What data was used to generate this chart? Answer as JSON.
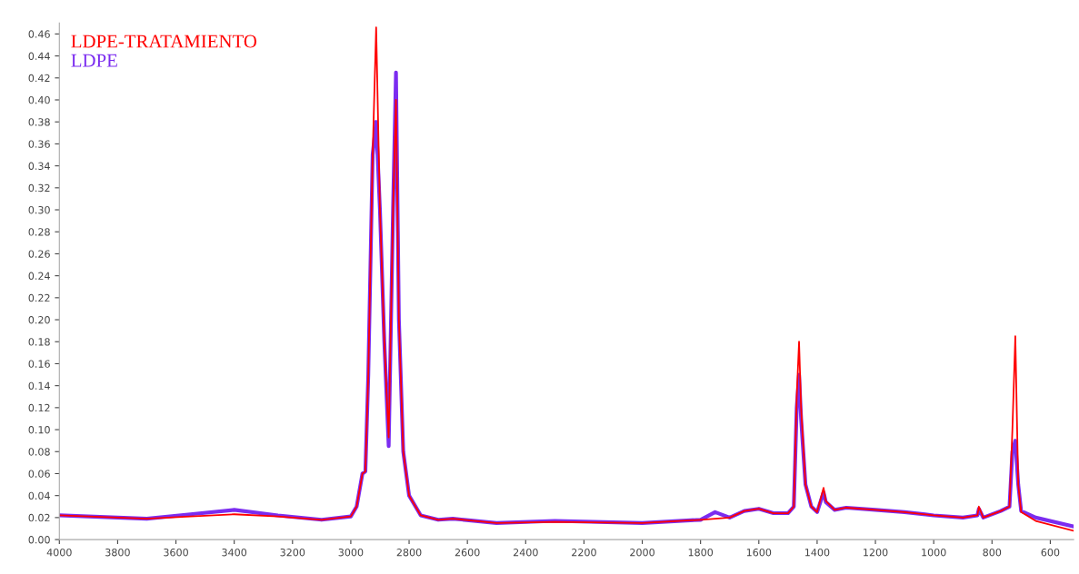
{
  "chart_data": {
    "type": "line",
    "legend": "top left",
    "xlim": [
      4000,
      520
    ],
    "ylim": [
      0,
      0.47
    ],
    "xticks": [
      4000,
      3800,
      3600,
      3400,
      3200,
      3000,
      2800,
      2600,
      2400,
      2200,
      2000,
      1800,
      1600,
      1400,
      1200,
      1000,
      800,
      600
    ],
    "yticks": [
      {
        "value": 0,
        "label": "0.00"
      },
      {
        "value": 0.02,
        "label": "0.02"
      },
      {
        "value": 0.04,
        "label": "0.04"
      },
      {
        "value": 0.06,
        "label": "0.06"
      },
      {
        "value": 0.08,
        "label": "0.08"
      },
      {
        "value": 0.1,
        "label": "0.10"
      },
      {
        "value": 0.12,
        "label": "0.12"
      },
      {
        "value": 0.14,
        "label": "0.14"
      },
      {
        "value": 0.16,
        "label": "0.16"
      },
      {
        "value": 0.18,
        "label": "0.18"
      },
      {
        "value": 0.2,
        "label": "0.20"
      },
      {
        "value": 0.22,
        "label": "0.22"
      },
      {
        "value": 0.24,
        "label": "0.24"
      },
      {
        "value": 0.26,
        "label": "0.26"
      },
      {
        "value": 0.28,
        "label": "0.28"
      },
      {
        "value": 0.3,
        "label": "0.30"
      },
      {
        "value": 0.32,
        "label": "0.32"
      },
      {
        "value": 0.34,
        "label": "0.34"
      },
      {
        "value": 0.36,
        "label": "0.36"
      },
      {
        "value": 0.38,
        "label": "0.38"
      },
      {
        "value": 0.4,
        "label": "0.40"
      },
      {
        "value": 0.42,
        "label": "0.42"
      },
      {
        "value": 0.44,
        "label": "0.44"
      },
      {
        "value": 0.46,
        "label": "0.46"
      }
    ],
    "x": [
      4000,
      3800,
      3700,
      3550,
      3400,
      3250,
      3100,
      3000,
      2980,
      2960,
      2950,
      2940,
      2925,
      2913,
      2900,
      2885,
      2870,
      2855,
      2845,
      2835,
      2820,
      2800,
      2760,
      2700,
      2650,
      2500,
      2300,
      2000,
      1800,
      1750,
      1700,
      1650,
      1600,
      1550,
      1500,
      1480,
      1470,
      1462,
      1455,
      1440,
      1420,
      1400,
      1378,
      1370,
      1340,
      1300,
      1200,
      1100,
      1000,
      900,
      850,
      845,
      830,
      770,
      740,
      730,
      720,
      710,
      700,
      650,
      520
    ],
    "series": [
      {
        "name": "LDPE",
        "color": "#7b2cf0",
        "values": [
          0.022,
          0.02,
          0.019,
          0.023,
          0.027,
          0.022,
          0.018,
          0.021,
          0.03,
          0.06,
          0.062,
          0.15,
          0.35,
          0.38,
          0.3,
          0.18,
          0.085,
          0.3,
          0.425,
          0.2,
          0.08,
          0.04,
          0.022,
          0.018,
          0.019,
          0.015,
          0.017,
          0.015,
          0.018,
          0.025,
          0.02,
          0.026,
          0.028,
          0.024,
          0.024,
          0.03,
          0.12,
          0.15,
          0.11,
          0.05,
          0.03,
          0.025,
          0.043,
          0.034,
          0.027,
          0.029,
          0.027,
          0.025,
          0.022,
          0.02,
          0.022,
          0.028,
          0.02,
          0.026,
          0.03,
          0.08,
          0.09,
          0.05,
          0.026,
          0.02,
          0.012
        ]
      },
      {
        "name": "LDPE-TRATAMIENTO",
        "color": "#ff0000",
        "values": [
          0.022,
          0.02,
          0.019,
          0.021,
          0.023,
          0.021,
          0.018,
          0.021,
          0.03,
          0.06,
          0.062,
          0.15,
          0.35,
          0.466,
          0.3,
          0.18,
          0.093,
          0.3,
          0.4,
          0.2,
          0.08,
          0.04,
          0.022,
          0.018,
          0.019,
          0.015,
          0.016,
          0.015,
          0.018,
          0.019,
          0.02,
          0.026,
          0.028,
          0.024,
          0.024,
          0.03,
          0.13,
          0.18,
          0.12,
          0.05,
          0.03,
          0.025,
          0.047,
          0.035,
          0.027,
          0.029,
          0.027,
          0.025,
          0.022,
          0.02,
          0.022,
          0.03,
          0.02,
          0.026,
          0.03,
          0.1,
          0.185,
          0.05,
          0.025,
          0.017,
          0.008
        ]
      }
    ]
  }
}
